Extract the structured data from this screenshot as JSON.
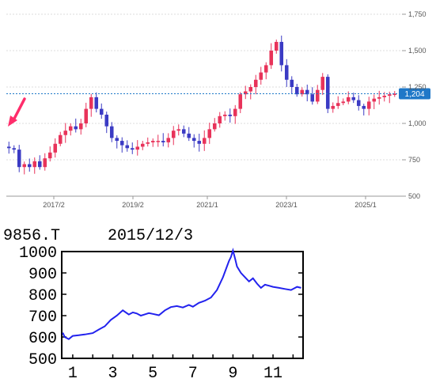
{
  "chart_data": [
    {
      "type": "candlestick",
      "title": "",
      "xlabel": "",
      "ylabel": "",
      "x_tick_labels": [
        "2017/2",
        "2019/2",
        "2021/1",
        "2023/1",
        "2025/1"
      ],
      "y_tick_labels": [
        "500",
        "750",
        "1,000",
        "1,250",
        "1,500",
        "1,750"
      ],
      "ylim": [
        500,
        1750
      ],
      "grid": true,
      "current_price": "1,204",
      "colors": {
        "up": "#e8335a",
        "down": "#3b3bc4",
        "marker": "#ff2d6b",
        "price_tag": "#1f78c8"
      },
      "approx_closes": [
        830,
        820,
        700,
        720,
        700,
        740,
        700,
        760,
        800,
        860,
        920,
        950,
        980,
        960,
        1000,
        1100,
        1180,
        1100,
        1060,
        980,
        900,
        880,
        850,
        830,
        820,
        840,
        860,
        870,
        880,
        880,
        870,
        900,
        950,
        960,
        930,
        900,
        880,
        860,
        900,
        960,
        1000,
        1050,
        1060,
        1050,
        1100,
        1200,
        1220,
        1250,
        1300,
        1350,
        1400,
        1500,
        1560,
        1400,
        1300,
        1250,
        1200,
        1230,
        1200,
        1150,
        1230,
        1320,
        1100,
        1120,
        1140,
        1150,
        1180,
        1160,
        1120,
        1100,
        1150,
        1170,
        1180,
        1190,
        1200,
        1204
      ]
    },
    {
      "type": "line",
      "symbol": "9856.T",
      "date": "2015/12/3",
      "ylim": [
        500,
        1000
      ],
      "y_tick_labels": [
        "500",
        "600",
        "700",
        "800",
        "900",
        "1000"
      ],
      "x_tick_labels": [
        "1",
        "3",
        "5",
        "7",
        "9",
        "11"
      ],
      "series_color": "#2222ee",
      "x": [
        0.5,
        0.6,
        0.8,
        1.0,
        1.3,
        1.6,
        2.0,
        2.3,
        2.6,
        2.9,
        3.2,
        3.5,
        3.8,
        4.0,
        4.2,
        4.4,
        4.6,
        4.8,
        5.0,
        5.3,
        5.6,
        5.9,
        6.2,
        6.5,
        6.8,
        7.0,
        7.3,
        7.6,
        7.9,
        8.2,
        8.5,
        8.7,
        8.8,
        8.9,
        9.0,
        9.1,
        9.2,
        9.4,
        9.6,
        9.8,
        10.0,
        10.2,
        10.4,
        10.6,
        10.8,
        11.0,
        11.3,
        11.6,
        11.9,
        12.2,
        12.4
      ],
      "values": [
        620,
        600,
        590,
        605,
        608,
        612,
        618,
        635,
        650,
        680,
        700,
        725,
        705,
        715,
        710,
        700,
        706,
        712,
        708,
        702,
        725,
        740,
        745,
        738,
        750,
        742,
        760,
        770,
        785,
        820,
        880,
        930,
        955,
        975,
        1005,
        970,
        930,
        900,
        880,
        860,
        875,
        850,
        830,
        845,
        840,
        835,
        830,
        825,
        820,
        835,
        830
      ]
    }
  ]
}
